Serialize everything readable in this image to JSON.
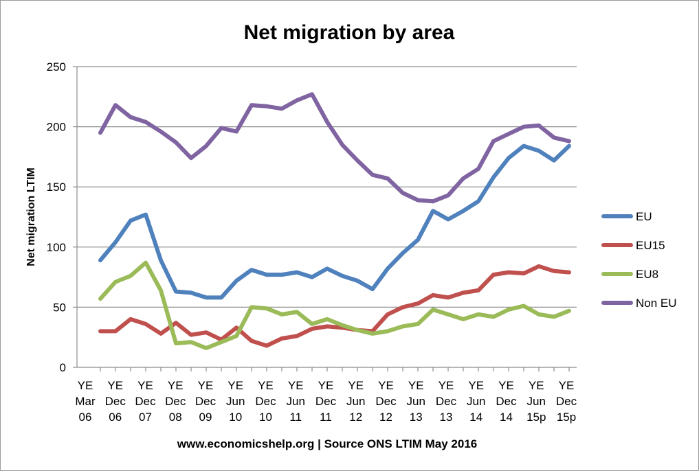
{
  "chart_data": {
    "type": "line",
    "title": "Net migration by area",
    "ylabel": "Net migration LTIM",
    "xlabel": "",
    "ylim": [
      0,
      250
    ],
    "yticks": [
      0,
      50,
      100,
      150,
      200,
      250
    ],
    "grid": true,
    "legend_position": "right",
    "x_tick_labels": [
      [
        "YE",
        "Mar",
        "06"
      ],
      [
        "YE",
        "Dec",
        "06"
      ],
      [
        "YE",
        "Dec",
        "07"
      ],
      [
        "YE",
        "Dec",
        "08"
      ],
      [
        "YE",
        "Dec",
        "09"
      ],
      [
        "YE",
        "Jun",
        "10"
      ],
      [
        "YE",
        "Dec",
        "10"
      ],
      [
        "YE",
        "Jun",
        "11"
      ],
      [
        "YE",
        "Dec",
        "11"
      ],
      [
        "YE",
        "Jun",
        "12"
      ],
      [
        "YE",
        "Dec",
        "12"
      ],
      [
        "YE",
        "Jun",
        "13"
      ],
      [
        "YE",
        "Dec",
        "13"
      ],
      [
        "YE",
        "Jun",
        "14"
      ],
      [
        "YE",
        "Dec",
        "14"
      ],
      [
        "YE",
        "Jun",
        "15p"
      ],
      [
        "YE",
        "Dec",
        "15p"
      ]
    ],
    "series": [
      {
        "name": "EU",
        "color": "#4f81bd",
        "values": [
          89,
          104,
          122,
          127,
          89,
          63,
          62,
          58,
          58,
          72,
          81,
          77,
          77,
          79,
          75,
          82,
          76,
          72,
          65,
          82,
          95,
          106,
          130,
          123,
          130,
          138,
          158,
          174,
          184,
          180,
          172,
          184
        ]
      },
      {
        "name": "EU15",
        "color": "#c0504d",
        "values": [
          30,
          30,
          40,
          36,
          28,
          37,
          27,
          29,
          23,
          33,
          22,
          18,
          24,
          26,
          32,
          34,
          33,
          31,
          30,
          44,
          50,
          53,
          60,
          58,
          62,
          64,
          77,
          79,
          78,
          84,
          80,
          79
        ]
      },
      {
        "name": "EU8",
        "color": "#9bbb59",
        "values": [
          57,
          71,
          76,
          87,
          64,
          20,
          21,
          16,
          21,
          26,
          50,
          49,
          44,
          46,
          36,
          40,
          35,
          31,
          28,
          30,
          34,
          36,
          48,
          44,
          40,
          44,
          42,
          48,
          51,
          44,
          42,
          47
        ]
      },
      {
        "name": "Non EU",
        "color": "#8064a2",
        "values": [
          195,
          218,
          208,
          204,
          196,
          187,
          174,
          184,
          199,
          196,
          218,
          217,
          215,
          222,
          227,
          204,
          185,
          172,
          160,
          157,
          145,
          139,
          138,
          143,
          157,
          165,
          188,
          194,
          200,
          201,
          191,
          188
        ]
      }
    ]
  },
  "footer": "www.economicshelp.org | Source ONS LTIM May 2016"
}
